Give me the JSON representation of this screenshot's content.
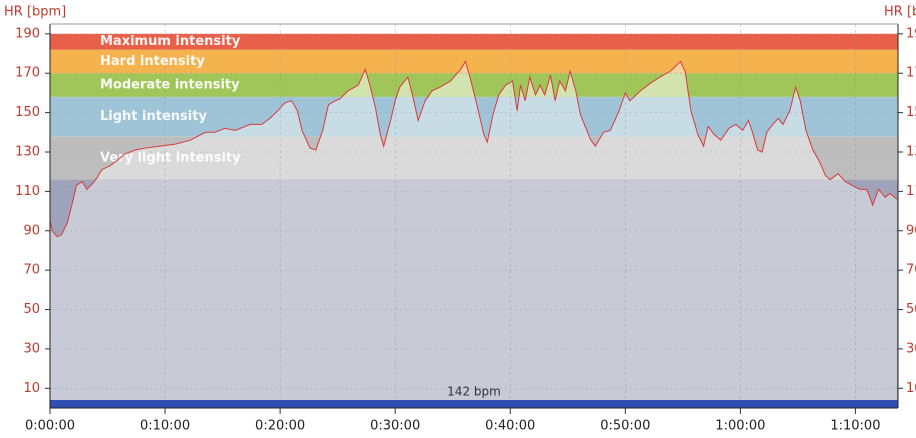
{
  "chart_data": {
    "type": "line",
    "y_label": "HR [bpm]",
    "average_label": "142 bpm",
    "line_color": "#d83a3a",
    "grid": true,
    "xlim": [
      0,
      73.7
    ],
    "xticks": [
      {
        "value": 0,
        "label": "0:00:00"
      },
      {
        "value": 10,
        "label": "0:10:00"
      },
      {
        "value": 20,
        "label": "0:20:00"
      },
      {
        "value": 30,
        "label": "0:30:00"
      },
      {
        "value": 40,
        "label": "0:40:00"
      },
      {
        "value": 50,
        "label": "0:50:00"
      },
      {
        "value": 60,
        "label": "1:00:00"
      },
      {
        "value": 70,
        "label": "1:10:00"
      }
    ],
    "ylim": [
      0,
      195
    ],
    "yticks": [
      10,
      30,
      50,
      70,
      90,
      110,
      130,
      150,
      170,
      190
    ],
    "zones": [
      {
        "from": 0,
        "to": 116,
        "color": "#9ea3ba",
        "fill": "#c8cbd6"
      },
      {
        "name": "Very light intensity",
        "from": 116,
        "to": 138,
        "color": "#bdbdbd",
        "fill": "#dadada"
      },
      {
        "name": "Light intensity",
        "from": 138,
        "to": 158,
        "color": "#9fc4d8",
        "fill": "#c8dce6"
      },
      {
        "name": "Moderate intensity",
        "from": 158,
        "to": 170,
        "color": "#a0c65a",
        "fill": "#d3e3b0"
      },
      {
        "name": "Hard intensity",
        "from": 170,
        "to": 182,
        "color": "#f5b350",
        "fill": "#f8d39a"
      },
      {
        "name": "Maximum intensity",
        "from": 182,
        "to": 190,
        "color": "#e8604a",
        "fill": "#f0a090"
      }
    ],
    "x": [
      0,
      0.2,
      0.6,
      1.0,
      1.5,
      1.9,
      2.3,
      2.8,
      3.2,
      3.7,
      4.1,
      4.5,
      5.2,
      5.9,
      6.5,
      7.4,
      8.3,
      9.6,
      10.9,
      12.2,
      13.5,
      14.3,
      15.2,
      16.1,
      17.4,
      18.4,
      19.1,
      19.8,
      20.4,
      21.0,
      21.5,
      21.9,
      22.6,
      23.1,
      23.7,
      24.2,
      24.8,
      25.2,
      25.9,
      26.8,
      27.4,
      27.8,
      28.3,
      28.7,
      29.0,
      29.6,
      30.0,
      30.4,
      31.1,
      31.5,
      32.0,
      32.6,
      33.2,
      33.9,
      34.8,
      35.7,
      36.1,
      36.5,
      37.1,
      37.7,
      38.0,
      38.5,
      39.0,
      39.6,
      40.2,
      40.6,
      40.9,
      41.3,
      41.7,
      42.2,
      42.6,
      43.0,
      43.5,
      43.9,
      44.3,
      44.8,
      45.2,
      45.7,
      46.1,
      47.0,
      47.4,
      48.1,
      48.7,
      49.4,
      50.0,
      50.4,
      51.3,
      52.2,
      53.0,
      53.9,
      54.8,
      55.2,
      55.7,
      56.3,
      56.8,
      57.2,
      57.7,
      58.3,
      59.0,
      59.6,
      60.2,
      60.7,
      61.0,
      61.5,
      61.9,
      62.3,
      62.8,
      63.3,
      63.7,
      64.3,
      64.8,
      65.2,
      65.7,
      66.3,
      66.8,
      67.4,
      67.8,
      68.5,
      69.1,
      69.7,
      70.4,
      71.0,
      71.5,
      72.0,
      72.6,
      73.0,
      73.6
    ],
    "series": [
      {
        "name": "HR",
        "values": [
          95,
          90,
          87,
          88,
          94,
          103,
          113,
          115,
          111,
          114,
          117,
          121,
          123,
          126,
          129,
          131,
          132,
          133,
          134,
          136,
          140,
          140,
          142,
          141,
          144,
          144,
          147,
          151,
          155,
          156,
          151,
          141,
          132,
          131,
          141,
          154,
          156,
          157,
          161,
          164,
          172,
          164,
          152,
          139,
          133,
          146,
          156,
          163,
          168,
          159,
          146,
          156,
          161,
          163,
          166,
          172,
          176,
          168,
          154,
          139,
          135,
          149,
          159,
          164,
          166,
          151,
          164,
          156,
          168,
          159,
          164,
          159,
          169,
          156,
          166,
          161,
          171,
          161,
          149,
          136,
          133,
          140,
          141,
          150,
          160,
          156,
          161,
          165,
          168,
          171,
          176,
          171,
          151,
          139,
          133,
          143,
          139,
          136,
          142,
          144,
          141,
          146,
          141,
          131,
          130,
          140,
          144,
          147,
          144,
          151,
          163,
          156,
          141,
          131,
          126,
          118,
          116,
          119,
          115,
          113,
          111,
          111,
          103,
          111,
          107,
          109,
          106
        ]
      }
    ]
  }
}
